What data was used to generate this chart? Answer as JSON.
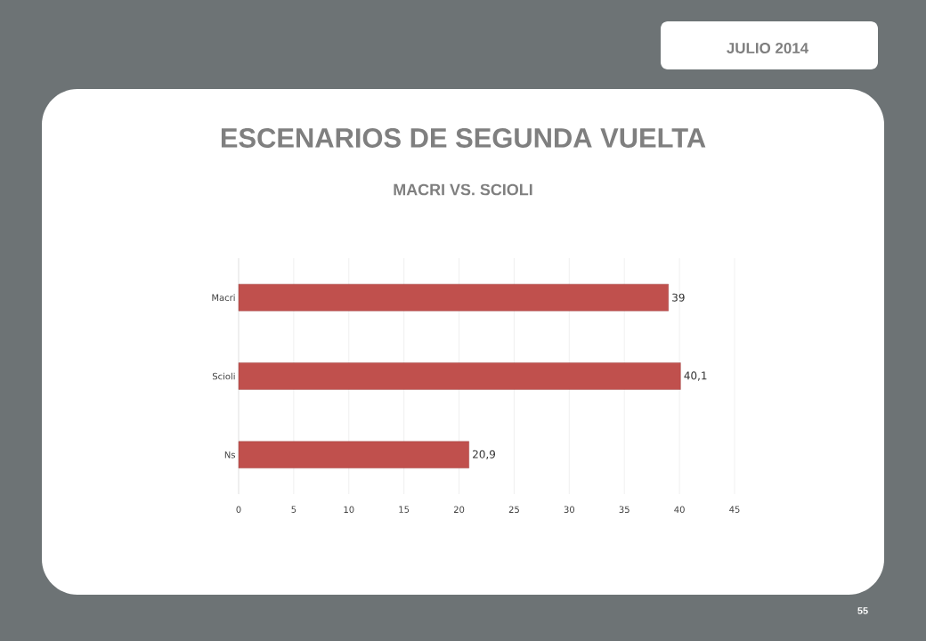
{
  "chart_data": {
    "type": "bar",
    "orientation": "horizontal",
    "title": "ESCENARIOS DE SEGUNDA VUELTA",
    "subtitle": "MACRI VS. SCIOLI",
    "annotations": [
      "JULIO 2014",
      "55"
    ],
    "categories": [
      "Macri",
      "Scioli",
      "Ns"
    ],
    "values": [
      39,
      40.1,
      20.9
    ],
    "value_labels": [
      "39",
      "40,1",
      "20,9"
    ],
    "color": "#c0504d",
    "xlim": [
      0,
      45
    ],
    "xticks": [
      0,
      5,
      10,
      15,
      20,
      25,
      30,
      35,
      40,
      45
    ],
    "grid": "x"
  }
}
